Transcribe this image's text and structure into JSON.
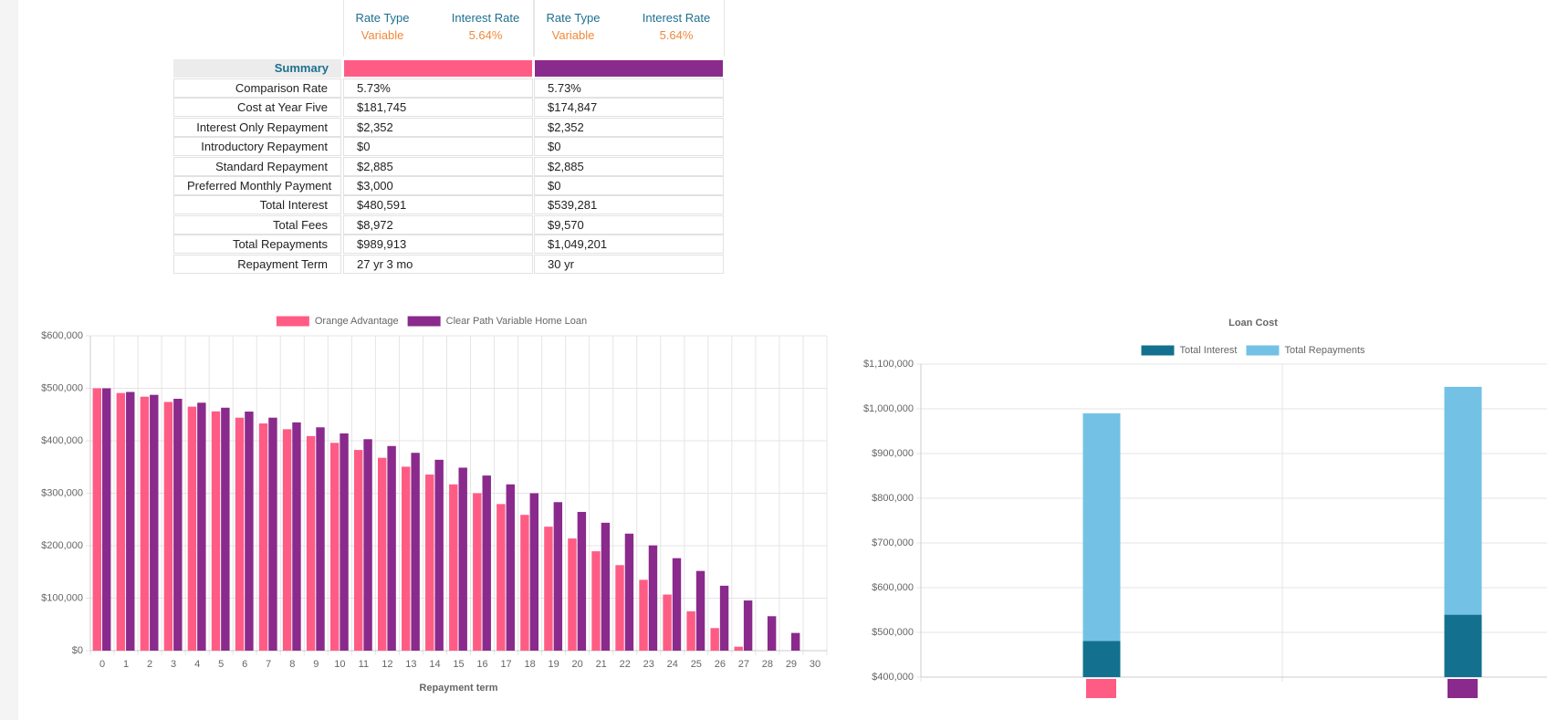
{
  "table": {
    "header": [
      {
        "rate_type_label": "Rate Type",
        "interest_rate_label": "Interest Rate",
        "rate_type": "Variable",
        "interest_rate": "5.64%"
      },
      {
        "rate_type_label": "Rate Type",
        "interest_rate_label": "Interest Rate",
        "rate_type": "Variable",
        "interest_rate": "5.64%"
      }
    ],
    "summary_label": "Summary",
    "rows": [
      [
        "Comparison Rate",
        "5.73%",
        "5.73%"
      ],
      [
        "Cost at Year Five",
        "$181,745",
        "$174,847"
      ],
      [
        "Interest Only Repayment",
        "$2,352",
        "$2,352"
      ],
      [
        "Introductory Repayment",
        "$0",
        "$0"
      ],
      [
        "Standard Repayment",
        "$2,885",
        "$2,885"
      ],
      [
        "Preferred Monthly Payment",
        "$3,000",
        "$0"
      ],
      [
        "Total Interest",
        "$480,591",
        "$539,281"
      ],
      [
        "Total Fees",
        "$8,972",
        "$9,570"
      ],
      [
        "Total Repayments",
        "$989,913",
        "$1,049,201"
      ],
      [
        "Repayment Term",
        "27 yr 3 mo",
        "30 yr"
      ]
    ]
  },
  "chart_data": [
    {
      "type": "bar",
      "bar_mode": "group",
      "x_label": "Repayment term",
      "categories": [
        "0",
        "1",
        "2",
        "3",
        "4",
        "5",
        "6",
        "7",
        "8",
        "9",
        "10",
        "11",
        "12",
        "13",
        "14",
        "15",
        "16",
        "17",
        "18",
        "19",
        "20",
        "21",
        "22",
        "23",
        "24",
        "25",
        "26",
        "27",
        "28",
        "29",
        "30"
      ],
      "series": [
        {
          "name": "Orange Advantage",
          "color": "#ff5c85",
          "values": [
            500000,
            491000,
            484000,
            474000,
            465000,
            456000,
            444000,
            433000,
            422000,
            409000,
            396000,
            382500,
            367500,
            350600,
            335600,
            316900,
            300000,
            279400,
            258750,
            236250,
            213750,
            189400,
            163000,
            135000,
            106900,
            75000,
            43000,
            7500,
            0,
            0,
            0
          ]
        },
        {
          "name": "Clear Path Variable Home Loan",
          "color": "#8a2a8c",
          "values": [
            500000,
            493000,
            487500,
            480000,
            472500,
            463000,
            455600,
            444000,
            435000,
            425600,
            414000,
            403000,
            390000,
            377000,
            363750,
            348750,
            333750,
            316900,
            300000,
            283000,
            264400,
            243750,
            223000,
            200600,
            176250,
            151900,
            123750,
            95600,
            65600,
            33750,
            0
          ]
        }
      ],
      "ylim": [
        0,
        600000
      ],
      "yticks": [
        {
          "value": 0,
          "label": "$0"
        },
        {
          "value": 100000,
          "label": "$100,000"
        },
        {
          "value": 200000,
          "label": "$200,000"
        },
        {
          "value": 300000,
          "label": "$300,000"
        },
        {
          "value": 400000,
          "label": "$400,000"
        },
        {
          "value": 500000,
          "label": "$500,000"
        },
        {
          "value": 600000,
          "label": "$600,000"
        }
      ],
      "grid": true
    },
    {
      "type": "bar",
      "bar_mode": "overlay",
      "title": "Loan Cost",
      "categories": [
        null,
        null
      ],
      "series": [
        {
          "name": "Total Interest",
          "color": "#13718f",
          "values": [
            480591,
            539281
          ]
        },
        {
          "name": "Total Repayments",
          "color": "#74c1e6",
          "values": [
            989913,
            1049201
          ]
        }
      ],
      "ylim": [
        400000,
        1100000
      ],
      "yticks": [
        {
          "value": 400000,
          "label": "$400,000"
        },
        {
          "value": 500000,
          "label": "$500,000"
        },
        {
          "value": 600000,
          "label": "$600,000"
        },
        {
          "value": 700000,
          "label": "$700,000"
        },
        {
          "value": 800000,
          "label": "$800,000"
        },
        {
          "value": 900000,
          "label": "$900,000"
        },
        {
          "value": 1000000,
          "label": "$1,000,000"
        },
        {
          "value": 1100000,
          "label": "$1,100,000"
        }
      ],
      "grid": true
    }
  ]
}
